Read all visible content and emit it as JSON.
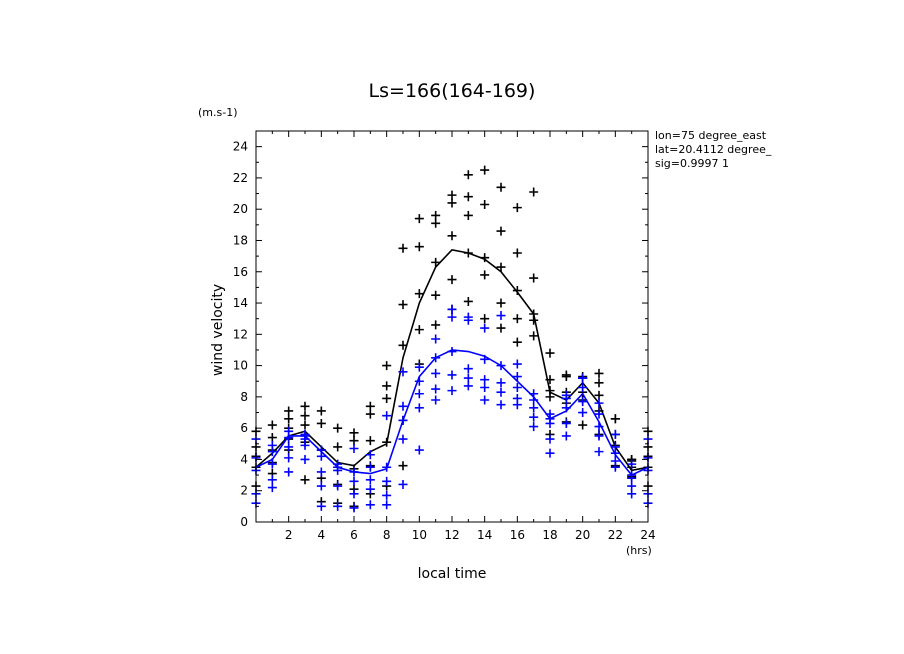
{
  "chart_data": {
    "type": "scatter",
    "title": "Ls=166(164-169)",
    "xlabel": "local time",
    "ylabel": "wind velocity",
    "x_unit": "(hrs)",
    "y_unit": "(m.s-1)",
    "xlim": [
      0,
      24
    ],
    "ylim": [
      0,
      25
    ],
    "x_ticks": [
      "2",
      "4",
      "6",
      "8",
      "10",
      "12",
      "14",
      "16",
      "18",
      "20",
      "22",
      "24"
    ],
    "y_ticks": [
      "0",
      "2",
      "4",
      "6",
      "8",
      "10",
      "12",
      "14",
      "16",
      "18",
      "20",
      "22",
      "24"
    ],
    "info": [
      "lon=75 degree_east",
      "lat=20.4112 degree_",
      "sig=0.9997 1"
    ],
    "series": [
      {
        "color": "#000000",
        "mean": {
          "x": [
            0,
            1,
            2,
            3,
            4,
            5,
            6,
            7,
            8,
            9,
            10,
            11,
            12,
            13,
            14,
            15,
            16,
            17,
            18,
            19,
            20,
            21,
            22,
            23,
            24
          ],
          "y": [
            3.5,
            4.4,
            5.5,
            5.8,
            4.8,
            3.8,
            3.6,
            4.5,
            5.0,
            10.5,
            14.0,
            16.3,
            17.4,
            17.2,
            16.8,
            16.0,
            14.7,
            13.3,
            8.3,
            7.8,
            8.9,
            7.6,
            4.8,
            3.3,
            3.5
          ]
        },
        "scatter": [
          [
            2.3,
            3.5,
            4.2,
            4.8,
            5.8
          ],
          [
            3.1,
            3.8,
            4.6,
            5.4,
            6.2
          ],
          [
            4.6,
            5.3,
            6.0,
            6.6,
            7.1
          ],
          [
            2.7,
            5.1,
            6.2,
            6.8,
            7.4
          ],
          [
            1.3,
            2.8,
            4.6,
            6.3,
            7.1
          ],
          [
            1.2,
            2.4,
            3.5,
            4.8,
            6.0
          ],
          [
            1.0,
            2.1,
            3.4,
            5.2,
            5.7
          ],
          [
            1.8,
            3.6,
            5.2,
            6.9,
            7.4
          ],
          [
            2.3,
            5.1,
            7.9,
            8.7,
            10.0
          ],
          [
            3.6,
            6.5,
            11.3,
            13.9,
            17.5
          ],
          [
            10.1,
            12.3,
            14.6,
            17.6,
            19.4
          ],
          [
            12.6,
            14.5,
            16.6,
            19.1,
            19.6
          ],
          [
            13.6,
            15.5,
            18.3,
            20.4,
            20.9
          ],
          [
            14.1,
            17.2,
            19.6,
            20.8,
            22.2
          ],
          [
            13.0,
            15.8,
            16.9,
            20.3,
            22.5
          ],
          [
            12.4,
            14.0,
            16.3,
            18.6,
            21.4
          ],
          [
            11.5,
            13.0,
            14.8,
            17.2,
            20.1
          ],
          [
            11.9,
            12.9,
            13.3,
            15.6,
            21.1
          ],
          [
            5.6,
            8.0,
            8.4,
            9.1,
            10.8
          ],
          [
            6.4,
            7.6,
            8.3,
            9.3,
            9.4
          ],
          [
            6.2,
            7.8,
            8.3,
            9.2,
            9.3
          ],
          [
            5.6,
            7.1,
            8.1,
            8.9,
            9.5
          ],
          [
            3.6,
            4.9,
            5.6,
            6.6,
            6.6
          ],
          [
            2.9,
            3.5,
            3.9,
            4.0,
            4.0
          ],
          [
            2.3,
            3.5,
            4.2,
            4.8,
            5.8
          ]
        ]
      },
      {
        "color": "#0000ff",
        "mean": {
          "x": [
            0,
            1,
            2,
            3,
            4,
            5,
            6,
            7,
            8,
            9,
            10,
            11,
            12,
            13,
            14,
            15,
            16,
            17,
            18,
            19,
            20,
            21,
            22,
            23,
            24
          ],
          "y": [
            3.5,
            4.0,
            5.5,
            5.5,
            4.5,
            3.5,
            3.2,
            3.1,
            3.4,
            6.5,
            9.3,
            10.5,
            11.0,
            10.9,
            10.6,
            10.0,
            9.0,
            8.0,
            6.6,
            7.1,
            8.2,
            6.4,
            4.3,
            3.0,
            3.5
          ]
        },
        "scatter": [
          [
            1.2,
            1.8,
            3.3,
            4.1,
            5.3
          ],
          [
            2.2,
            2.7,
            3.7,
            4.5,
            4.9
          ],
          [
            3.2,
            4.1,
            4.8,
            5.4,
            5.8
          ],
          [
            4.0,
            4.9,
            5.3,
            5.5,
            5.6
          ],
          [
            1.0,
            2.3,
            3.2,
            4.2,
            4.6
          ],
          [
            1.0,
            2.3,
            3.3,
            3.5,
            3.7
          ],
          [
            0.9,
            1.8,
            2.6,
            3.2,
            4.7
          ],
          [
            1.1,
            2.1,
            2.7,
            3.5,
            4.3
          ],
          [
            1.1,
            1.7,
            2.6,
            3.5,
            6.8
          ],
          [
            2.4,
            5.3,
            6.5,
            7.4,
            9.6
          ],
          [
            4.6,
            7.3,
            8.2,
            9.0,
            9.9
          ],
          [
            7.8,
            8.5,
            9.5,
            10.5,
            11.7
          ],
          [
            8.4,
            9.4,
            10.9,
            13.1,
            13.6
          ],
          [
            8.7,
            9.2,
            9.8,
            12.9,
            13.1
          ],
          [
            7.8,
            8.6,
            9.1,
            10.4,
            12.4
          ],
          [
            7.5,
            8.3,
            8.9,
            10.0,
            13.2
          ],
          [
            7.5,
            7.9,
            8.6,
            9.3,
            10.1
          ],
          [
            6.1,
            6.7,
            7.3,
            7.8,
            8.2
          ],
          [
            4.4,
            5.3,
            6.3,
            6.6,
            6.9
          ],
          [
            5.5,
            6.3,
            7.3,
            7.9,
            8.1
          ],
          [
            7.0,
            7.7,
            8.6,
            9.2,
            9.2
          ],
          [
            4.5,
            5.5,
            6.1,
            6.9,
            7.6
          ],
          [
            3.5,
            3.9,
            4.4,
            4.8,
            5.6
          ],
          [
            1.8,
            2.3,
            2.8,
            3.0,
            3.7
          ],
          [
            1.2,
            1.8,
            3.3,
            4.1,
            5.3
          ]
        ]
      }
    ]
  }
}
